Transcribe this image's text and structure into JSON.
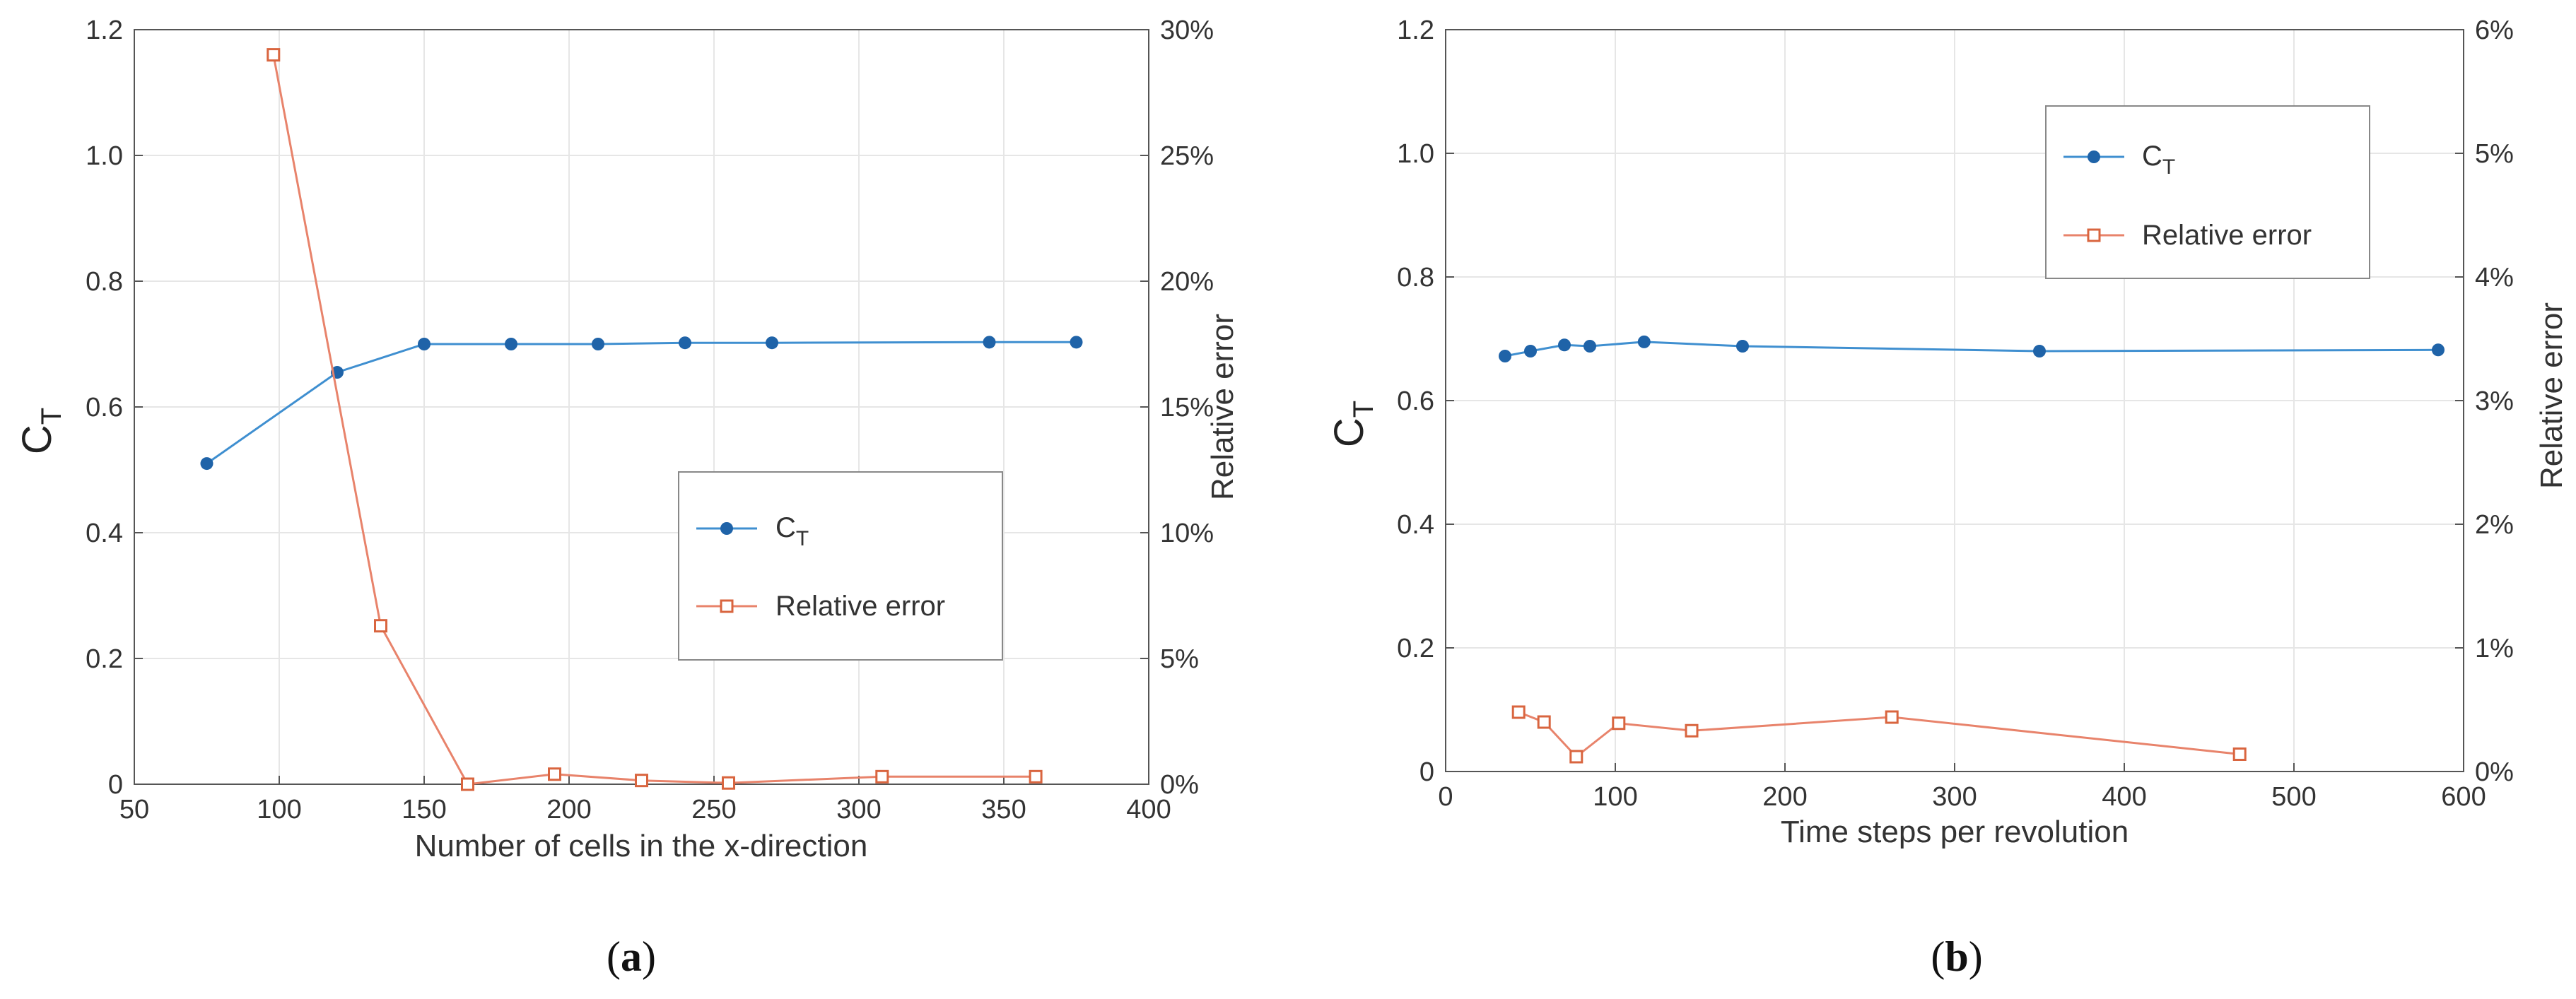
{
  "chart_data": [
    {
      "type": "line",
      "panel_label": "a",
      "caption_open": "(",
      "caption_close": ")",
      "xlabel": "Number of cells in the x-direction",
      "ylabel_left_main": "C",
      "ylabel_left_sub": "T",
      "ylabel_right": "Relative error",
      "xlim": [
        50,
        400
      ],
      "ylim_left": [
        0,
        1.2
      ],
      "ylim_right": [
        0,
        30
      ],
      "x_ticks": [
        "50",
        "100",
        "150",
        "200",
        "250",
        "300",
        "350",
        "400"
      ],
      "y_left_ticks": [
        "0",
        "0.2",
        "0.4",
        "0.6",
        "0.8",
        "1.0",
        "1.2"
      ],
      "y_right_ticks": [
        "0%",
        "5%",
        "10%",
        "15%",
        "20%",
        "25%",
        "30%"
      ],
      "grid": true,
      "legend_position": "center-right",
      "series": [
        {
          "name": "C",
          "name_sub": "T",
          "axis": "left",
          "color": "#3f8fd0",
          "marker": "circle",
          "x": [
            75,
            120,
            150,
            180,
            210,
            240,
            270,
            345,
            375
          ],
          "values": [
            0.51,
            0.655,
            0.7,
            0.7,
            0.7,
            0.702,
            0.702,
            0.703,
            0.703
          ]
        },
        {
          "name": "Relative error",
          "axis": "right",
          "color": "#e8836b",
          "marker": "square",
          "x": [
            98,
            135,
            165,
            195,
            225,
            255,
            308,
            361
          ],
          "values": [
            29.0,
            6.3,
            0.0,
            0.4,
            0.15,
            0.05,
            0.3,
            0.3
          ]
        }
      ]
    },
    {
      "type": "line",
      "panel_label": "b",
      "caption_open": "(",
      "caption_close": ")",
      "xlabel": "Time steps per revolution",
      "ylabel_left_main": "C",
      "ylabel_left_sub": "T",
      "ylabel_right": "Relative error",
      "xlim": [
        0,
        600
      ],
      "ylim_left": [
        0,
        1.2
      ],
      "ylim_right": [
        0,
        6
      ],
      "x_ticks": [
        "0",
        "100",
        "200",
        "300",
        "400",
        "500",
        "600"
      ],
      "y_left_ticks": [
        "0",
        "0.2",
        "0.4",
        "0.6",
        "0.8",
        "1.0",
        "1.2"
      ],
      "y_right_ticks": [
        "0%",
        "1%",
        "2%",
        "3%",
        "4%",
        "5%",
        "6%"
      ],
      "grid": true,
      "legend_position": "top-center",
      "series": [
        {
          "name": "C",
          "name_sub": "T",
          "axis": "left",
          "color": "#3f8fd0",
          "marker": "circle",
          "x": [
            35,
            50,
            70,
            85,
            117,
            175,
            350,
            585
          ],
          "values": [
            0.672,
            0.68,
            0.69,
            0.688,
            0.695,
            0.688,
            0.68,
            0.682
          ]
        },
        {
          "name": "Relative error",
          "axis": "right",
          "color": "#e8836b",
          "marker": "square",
          "x": [
            43,
            58,
            77,
            102,
            145,
            263,
            468
          ],
          "values": [
            0.48,
            0.4,
            0.12,
            0.39,
            0.33,
            0.44,
            0.14
          ]
        }
      ]
    }
  ]
}
